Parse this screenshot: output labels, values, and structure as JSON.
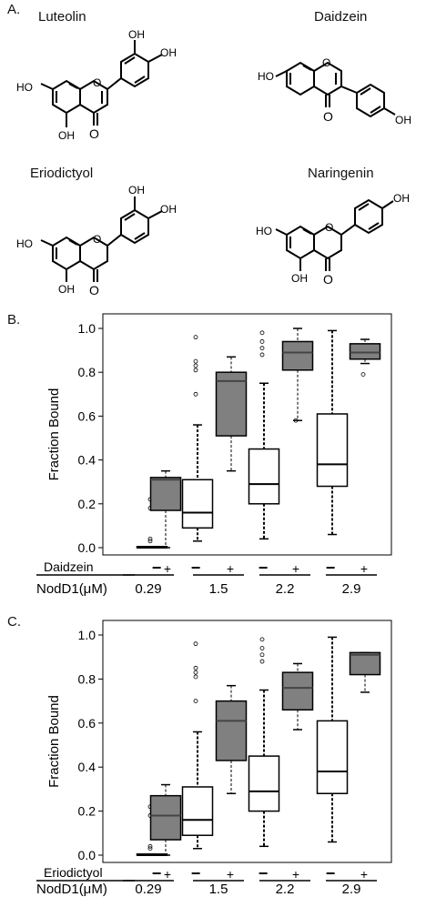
{
  "panels": {
    "a": "A.",
    "b": "B.",
    "c": "C."
  },
  "molecules": [
    {
      "name": "Luteolin"
    },
    {
      "name": "Daidzein"
    },
    {
      "name": "Eriodictyol"
    },
    {
      "name": "Naringenin"
    }
  ],
  "atoms": {
    "hydroxyl": "OH",
    "hydroxyl_left": "HO",
    "oxygen": "O"
  },
  "chart_data": [
    {
      "type": "box",
      "ylabel": "Fraction Bound",
      "ylim": [
        0,
        1.05
      ],
      "yticks": [
        "0.0",
        "0.2",
        "0.4",
        "0.6",
        "0.8",
        "1.0"
      ],
      "ligand_label": "Daidzein",
      "nodd1_label": "NodD1(μM)",
      "groups": [
        "0.29",
        "1.5",
        "2.2",
        "2.9"
      ],
      "sign_labels": {
        "minus": "−",
        "plus": "+"
      },
      "colors": {
        "minus": "#ffffff",
        "plus": "#808080"
      },
      "boxes": [
        {
          "group": "0.29",
          "ligand": "-",
          "whisker_low": 0.0,
          "q1": 0.0,
          "median": 0.0,
          "q3": 0.005,
          "whisker_high": 0.005,
          "outliers": [
            0.22,
            0.18,
            0.04,
            0.03
          ]
        },
        {
          "group": "0.29",
          "ligand": "+",
          "whisker_low": 0.0,
          "q1": 0.17,
          "median": 0.31,
          "q3": 0.32,
          "whisker_high": 0.35,
          "outliers": []
        },
        {
          "group": "1.5",
          "ligand": "-",
          "whisker_low": 0.03,
          "q1": 0.09,
          "median": 0.16,
          "q3": 0.31,
          "whisker_high": 0.56,
          "outliers": [
            0.96,
            0.85,
            0.83,
            0.81,
            0.7
          ]
        },
        {
          "group": "1.5",
          "ligand": "+",
          "whisker_low": 0.35,
          "q1": 0.51,
          "median": 0.76,
          "q3": 0.8,
          "whisker_high": 0.87,
          "outliers": []
        },
        {
          "group": "2.2",
          "ligand": "-",
          "whisker_low": 0.04,
          "q1": 0.2,
          "median": 0.29,
          "q3": 0.45,
          "whisker_high": 0.75,
          "outliers": [
            0.98,
            0.94,
            0.91,
            0.88
          ]
        },
        {
          "group": "2.2",
          "ligand": "+",
          "whisker_low": 0.58,
          "q1": 0.81,
          "median": 0.89,
          "q3": 0.94,
          "whisker_high": 1.0,
          "outliers": [
            0.58
          ]
        },
        {
          "group": "2.9",
          "ligand": "-",
          "whisker_low": 0.06,
          "q1": 0.28,
          "median": 0.38,
          "q3": 0.61,
          "whisker_high": 0.99,
          "outliers": []
        },
        {
          "group": "2.9",
          "ligand": "+",
          "whisker_low": 0.84,
          "q1": 0.86,
          "median": 0.89,
          "q3": 0.93,
          "whisker_high": 0.95,
          "outliers": [
            0.79
          ]
        }
      ]
    },
    {
      "type": "box",
      "ylabel": "Fraction Bound",
      "ylim": [
        0,
        1.05
      ],
      "yticks": [
        "0.0",
        "0.2",
        "0.4",
        "0.6",
        "0.8",
        "1.0"
      ],
      "ligand_label": "Eriodictyol",
      "nodd1_label": "NodD1(μM)",
      "groups": [
        "0.29",
        "1.5",
        "2.2",
        "2.9"
      ],
      "sign_labels": {
        "minus": "−",
        "plus": "+"
      },
      "colors": {
        "minus": "#ffffff",
        "plus": "#808080"
      },
      "boxes": [
        {
          "group": "0.29",
          "ligand": "-",
          "whisker_low": 0.0,
          "q1": 0.0,
          "median": 0.0,
          "q3": 0.005,
          "whisker_high": 0.005,
          "outliers": [
            0.22,
            0.18,
            0.04,
            0.03
          ]
        },
        {
          "group": "0.29",
          "ligand": "+",
          "whisker_low": 0.0,
          "q1": 0.07,
          "median": 0.18,
          "q3": 0.27,
          "whisker_high": 0.32,
          "outliers": []
        },
        {
          "group": "1.5",
          "ligand": "-",
          "whisker_low": 0.03,
          "q1": 0.09,
          "median": 0.16,
          "q3": 0.31,
          "whisker_high": 0.56,
          "outliers": [
            0.96,
            0.85,
            0.83,
            0.81,
            0.7
          ]
        },
        {
          "group": "1.5",
          "ligand": "+",
          "whisker_low": 0.28,
          "q1": 0.43,
          "median": 0.61,
          "q3": 0.7,
          "whisker_high": 0.77,
          "outliers": []
        },
        {
          "group": "2.2",
          "ligand": "-",
          "whisker_low": 0.04,
          "q1": 0.2,
          "median": 0.29,
          "q3": 0.45,
          "whisker_high": 0.75,
          "outliers": [
            0.98,
            0.94,
            0.91,
            0.88
          ]
        },
        {
          "group": "2.2",
          "ligand": "+",
          "whisker_low": 0.57,
          "q1": 0.66,
          "median": 0.76,
          "q3": 0.83,
          "whisker_high": 0.87,
          "outliers": []
        },
        {
          "group": "2.9",
          "ligand": "-",
          "whisker_low": 0.06,
          "q1": 0.28,
          "median": 0.38,
          "q3": 0.61,
          "whisker_high": 0.99,
          "outliers": []
        },
        {
          "group": "2.9",
          "ligand": "+",
          "whisker_low": 0.74,
          "q1": 0.82,
          "median": 0.91,
          "q3": 0.92,
          "whisker_high": 0.92,
          "outliers": []
        }
      ]
    }
  ]
}
